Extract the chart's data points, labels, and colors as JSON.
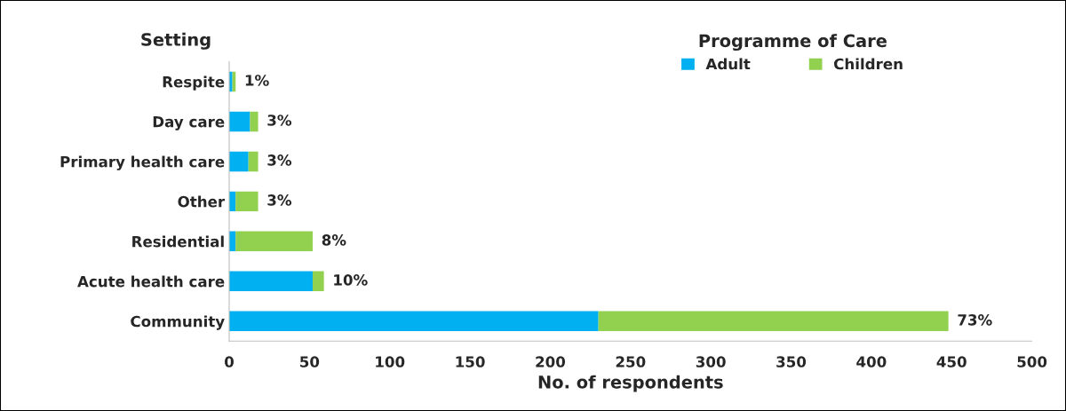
{
  "chart_data": {
    "type": "bar",
    "orientation": "horizontal",
    "stacked": true,
    "categories": [
      "Respite",
      "Day care",
      "Primary health care",
      "Other",
      "Residential",
      "Acute health care",
      "Community"
    ],
    "series": [
      {
        "name": "Adult",
        "color": "#00b0f0",
        "values": [
          2,
          13,
          12,
          4,
          4,
          52,
          230
        ]
      },
      {
        "name": "Children",
        "color": "#92d050",
        "values": [
          2,
          5,
          6,
          14,
          48,
          7,
          218
        ]
      }
    ],
    "annotations": [
      {
        "text": "1%",
        "x": 4,
        "y": "Respite"
      },
      {
        "text": "3%",
        "x": 18,
        "y": "Day care"
      },
      {
        "text": "3%",
        "x": 18,
        "y": "Primary health care"
      },
      {
        "text": "3%",
        "x": 18,
        "y": "Other"
      },
      {
        "text": "8%",
        "x": 52,
        "y": "Residential"
      },
      {
        "text": "10%",
        "x": 59,
        "y": "Acute health care"
      },
      {
        "text": "73%",
        "x": 448,
        "y": "Community"
      }
    ],
    "xlim": [
      0,
      500
    ],
    "xticks": [
      0,
      50,
      100,
      150,
      200,
      250,
      300,
      350,
      400,
      450,
      500
    ],
    "xlabel": "No. of respondents",
    "ylabel": "Setting",
    "legend_title": "Programme of Care",
    "legend": "top right",
    "grid": false
  }
}
